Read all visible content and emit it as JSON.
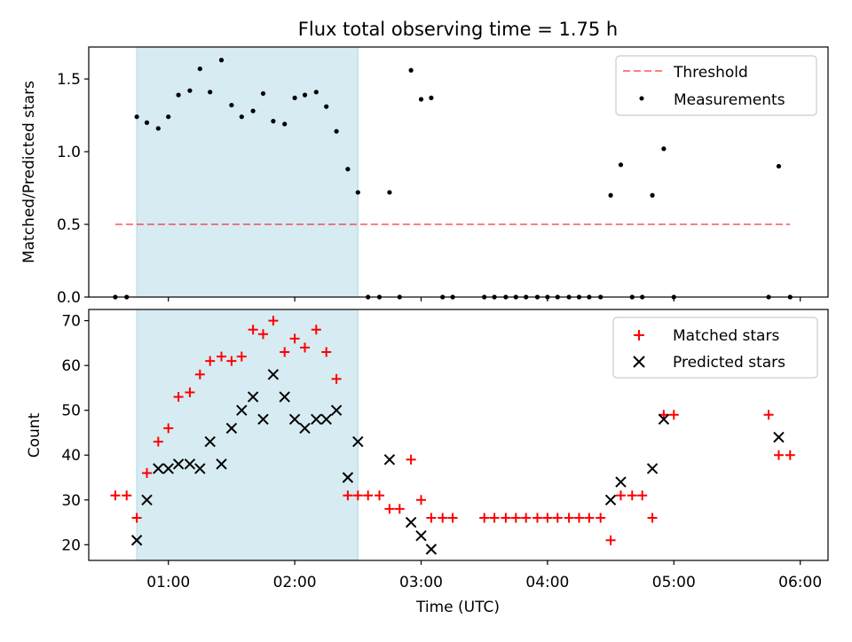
{
  "figure_title": "Flux total observing time = 1.75 h",
  "chart_data": [
    {
      "type": "scatter",
      "panel": "top",
      "ylabel": "Matched/Predicted stars",
      "ylim": [
        0,
        1.72
      ],
      "yticks": [
        0.0,
        0.5,
        1.0,
        1.5
      ],
      "ytick_labels": [
        "0.0",
        "0.5",
        "1.0",
        "1.5"
      ],
      "x_unit": "hours UTC",
      "xlim": [
        0.37,
        6.22
      ],
      "shaded_span": {
        "x_start": 0.75,
        "x_end": 2.5,
        "color": "#add8e6"
      },
      "legend_position": "top-right",
      "series": [
        {
          "name": "Threshold",
          "style": "dashed-line",
          "color": "#ff0000",
          "x": [
            0.58,
            5.92
          ],
          "y": [
            0.5,
            0.5
          ]
        },
        {
          "name": "Measurements",
          "style": "dot",
          "color": "#000000",
          "x": [
            0.58,
            0.67,
            0.75,
            0.83,
            0.92,
            1.0,
            1.08,
            1.17,
            1.25,
            1.33,
            1.42,
            1.5,
            1.58,
            1.67,
            1.75,
            1.83,
            1.92,
            2.0,
            2.08,
            2.17,
            2.25,
            2.33,
            2.42,
            2.5,
            2.58,
            2.67,
            2.75,
            2.83,
            2.92,
            3.0,
            3.08,
            3.17,
            3.25,
            3.5,
            3.58,
            3.67,
            3.75,
            3.83,
            3.92,
            4.0,
            4.08,
            4.17,
            4.25,
            4.33,
            4.42,
            4.5,
            4.58,
            4.67,
            4.75,
            4.83,
            4.92,
            5.0,
            5.75,
            5.83,
            5.92
          ],
          "y": [
            0.0,
            0.0,
            1.24,
            1.2,
            1.16,
            1.24,
            1.39,
            1.42,
            1.57,
            1.41,
            1.63,
            1.32,
            1.24,
            1.28,
            1.4,
            1.21,
            1.19,
            1.37,
            1.39,
            1.41,
            1.31,
            1.14,
            0.88,
            0.72,
            0.0,
            0.0,
            0.72,
            0.0,
            1.56,
            1.36,
            1.37,
            0.0,
            0.0,
            0.0,
            0.0,
            0.0,
            0.0,
            0.0,
            0.0,
            0.0,
            0.0,
            0.0,
            0.0,
            0.0,
            0.0,
            0.7,
            0.91,
            0.0,
            0.0,
            0.7,
            1.02,
            0.0,
            0.0,
            0.9,
            0.0
          ]
        }
      ]
    },
    {
      "type": "scatter",
      "panel": "bottom",
      "xlabel": "Time (UTC)",
      "ylabel": "Count",
      "ylim": [
        16.5,
        72.5
      ],
      "yticks": [
        20,
        30,
        40,
        50,
        60,
        70
      ],
      "ytick_labels": [
        "20",
        "30",
        "40",
        "50",
        "60",
        "70"
      ],
      "x_unit": "hours UTC",
      "xlim": [
        0.37,
        6.22
      ],
      "xticks": [
        1,
        2,
        3,
        4,
        5,
        6
      ],
      "xtick_labels": [
        "01:00",
        "02:00",
        "03:00",
        "04:00",
        "05:00",
        "06:00"
      ],
      "shaded_span": {
        "x_start": 0.75,
        "x_end": 2.5,
        "color": "#add8e6"
      },
      "legend_position": "top-right",
      "series": [
        {
          "name": "Matched stars",
          "marker": "plus",
          "color": "#ff0000",
          "x": [
            0.58,
            0.67,
            0.75,
            0.83,
            0.92,
            1.0,
            1.08,
            1.17,
            1.25,
            1.33,
            1.42,
            1.5,
            1.58,
            1.67,
            1.75,
            1.83,
            1.92,
            2.0,
            2.08,
            2.17,
            2.25,
            2.33,
            2.42,
            2.5,
            2.58,
            2.67,
            2.75,
            2.83,
            2.92,
            3.0,
            3.08,
            3.17,
            3.25,
            3.5,
            3.58,
            3.67,
            3.75,
            3.83,
            3.92,
            4.0,
            4.08,
            4.17,
            4.25,
            4.33,
            4.42,
            4.5,
            4.58,
            4.67,
            4.75,
            4.83,
            4.92,
            5.0,
            5.75,
            5.83,
            5.92
          ],
          "y": [
            31,
            31,
            26,
            36,
            43,
            46,
            53,
            54,
            58,
            61,
            62,
            61,
            62,
            68,
            67,
            70,
            63,
            66,
            64,
            68,
            63,
            57,
            31,
            31,
            31,
            31,
            28,
            28,
            39,
            30,
            26,
            26,
            26,
            26,
            26,
            26,
            26,
            26,
            26,
            26,
            26,
            26,
            26,
            26,
            26,
            21,
            31,
            31,
            31,
            26,
            49,
            49,
            49,
            40,
            40
          ]
        },
        {
          "name": "Predicted stars",
          "marker": "x",
          "color": "#000000",
          "x": [
            0.75,
            0.83,
            0.92,
            1.0,
            1.08,
            1.17,
            1.25,
            1.33,
            1.42,
            1.5,
            1.58,
            1.67,
            1.75,
            1.83,
            1.92,
            2.0,
            2.08,
            2.17,
            2.25,
            2.33,
            2.42,
            2.5,
            2.75,
            2.92,
            3.0,
            3.08,
            4.5,
            4.58,
            4.83,
            4.92,
            5.83
          ],
          "y": [
            21,
            30,
            37,
            37,
            38,
            38,
            37,
            43,
            38,
            46,
            50,
            53,
            48,
            58,
            53,
            48,
            46,
            48,
            48,
            50,
            35,
            43,
            39,
            25,
            22,
            19,
            30,
            34,
            37,
            48,
            44
          ]
        }
      ]
    }
  ]
}
